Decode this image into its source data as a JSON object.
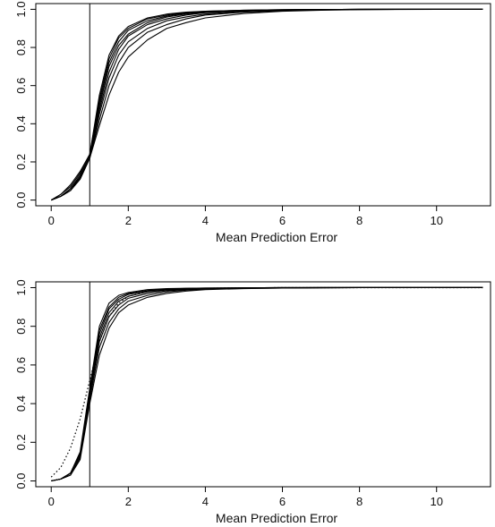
{
  "chart_data": [
    {
      "type": "line",
      "xlabel": "Mean Prediction Error",
      "ylabel": "",
      "xlim": [
        -0.4,
        11.4
      ],
      "ylim": [
        -0.03,
        1.03
      ],
      "xticks": [
        "0",
        "2",
        "4",
        "6",
        "8",
        "10"
      ],
      "yticks": [
        "0.0",
        "0.2",
        "0.4",
        "0.6",
        "0.8",
        "1.0"
      ],
      "vline_x": 1,
      "x": [
        0,
        0.25,
        0.5,
        0.75,
        1,
        1.25,
        1.5,
        1.75,
        2,
        2.5,
        3,
        3.5,
        4,
        5,
        6,
        7,
        8,
        9,
        10,
        11.2
      ],
      "series": [
        {
          "style": "solid",
          "values": [
            0.0,
            0.03,
            0.08,
            0.15,
            0.24,
            0.55,
            0.76,
            0.86,
            0.91,
            0.955,
            0.975,
            0.985,
            0.99,
            0.995,
            0.998,
            0.999,
            1.0,
            1.0,
            1.0,
            1.0
          ]
        },
        {
          "style": "solid",
          "values": [
            0.0,
            0.03,
            0.07,
            0.14,
            0.24,
            0.53,
            0.74,
            0.85,
            0.9,
            0.95,
            0.97,
            0.983,
            0.99,
            0.995,
            0.998,
            0.999,
            1.0,
            1.0,
            1.0,
            1.0
          ]
        },
        {
          "style": "solid",
          "values": [
            0.0,
            0.02,
            0.06,
            0.13,
            0.23,
            0.51,
            0.72,
            0.83,
            0.89,
            0.94,
            0.965,
            0.98,
            0.988,
            0.994,
            0.997,
            0.999,
            1.0,
            1.0,
            1.0,
            1.0
          ]
        },
        {
          "style": "solid",
          "values": [
            0.0,
            0.02,
            0.06,
            0.12,
            0.23,
            0.49,
            0.7,
            0.81,
            0.87,
            0.93,
            0.96,
            0.975,
            0.985,
            0.993,
            0.997,
            0.999,
            1.0,
            1.0,
            1.0,
            1.0
          ]
        },
        {
          "style": "solid",
          "values": [
            0.0,
            0.02,
            0.05,
            0.12,
            0.22,
            0.47,
            0.67,
            0.79,
            0.86,
            0.92,
            0.95,
            0.97,
            0.982,
            0.992,
            0.996,
            0.998,
            1.0,
            1.0,
            1.0,
            1.0
          ]
        },
        {
          "style": "solid",
          "values": [
            0.0,
            0.02,
            0.05,
            0.11,
            0.22,
            0.45,
            0.64,
            0.76,
            0.83,
            0.9,
            0.94,
            0.96,
            0.975,
            0.99,
            0.995,
            0.998,
            0.999,
            1.0,
            1.0,
            1.0
          ]
        },
        {
          "style": "solid",
          "values": [
            0.0,
            0.02,
            0.05,
            0.11,
            0.22,
            0.42,
            0.6,
            0.72,
            0.8,
            0.88,
            0.92,
            0.95,
            0.97,
            0.985,
            0.993,
            0.997,
            0.999,
            1.0,
            1.0,
            1.0
          ]
        },
        {
          "style": "solid",
          "values": [
            0.0,
            0.02,
            0.05,
            0.11,
            0.22,
            0.39,
            0.55,
            0.67,
            0.75,
            0.84,
            0.9,
            0.93,
            0.955,
            0.978,
            0.99,
            0.995,
            0.998,
            0.999,
            1.0,
            1.0
          ]
        }
      ]
    },
    {
      "type": "line",
      "xlabel": "Mean Prediction Error",
      "ylabel": "",
      "xlim": [
        -0.4,
        11.4
      ],
      "ylim": [
        -0.03,
        1.03
      ],
      "xticks": [
        "0",
        "2",
        "4",
        "6",
        "8",
        "10"
      ],
      "yticks": [
        "0.0",
        "0.2",
        "0.4",
        "0.6",
        "0.8",
        "1.0"
      ],
      "vline_x": 1,
      "x": [
        0,
        0.25,
        0.5,
        0.75,
        1,
        1.25,
        1.5,
        1.75,
        2,
        2.5,
        3,
        3.5,
        4,
        5,
        6,
        7,
        8,
        9,
        10,
        11.2
      ],
      "series": [
        {
          "style": "solid",
          "values": [
            0.0,
            0.01,
            0.04,
            0.15,
            0.48,
            0.8,
            0.92,
            0.96,
            0.975,
            0.99,
            0.995,
            0.997,
            0.998,
            0.999,
            1.0,
            1.0,
            1.0,
            1.0,
            1.0,
            1.0
          ]
        },
        {
          "style": "solid",
          "values": [
            0.0,
            0.01,
            0.04,
            0.14,
            0.47,
            0.78,
            0.9,
            0.95,
            0.97,
            0.985,
            0.992,
            0.996,
            0.998,
            0.999,
            1.0,
            1.0,
            1.0,
            1.0,
            1.0,
            1.0
          ]
        },
        {
          "style": "solid",
          "values": [
            0.0,
            0.01,
            0.04,
            0.14,
            0.46,
            0.76,
            0.89,
            0.94,
            0.965,
            0.983,
            0.99,
            0.995,
            0.997,
            0.999,
            1.0,
            1.0,
            1.0,
            1.0,
            1.0,
            1.0
          ]
        },
        {
          "style": "solid",
          "values": [
            0.0,
            0.01,
            0.04,
            0.13,
            0.45,
            0.74,
            0.87,
            0.93,
            0.955,
            0.978,
            0.988,
            0.993,
            0.996,
            0.998,
            0.999,
            1.0,
            1.0,
            1.0,
            1.0,
            1.0
          ]
        },
        {
          "style": "solid",
          "values": [
            0.0,
            0.01,
            0.04,
            0.13,
            0.44,
            0.72,
            0.85,
            0.91,
            0.945,
            0.97,
            0.984,
            0.99,
            0.994,
            0.997,
            0.999,
            1.0,
            1.0,
            1.0,
            1.0,
            1.0
          ]
        },
        {
          "style": "solid",
          "values": [
            0.0,
            0.01,
            0.03,
            0.12,
            0.42,
            0.69,
            0.82,
            0.89,
            0.93,
            0.96,
            0.978,
            0.987,
            0.992,
            0.996,
            0.998,
            0.999,
            1.0,
            1.0,
            1.0,
            1.0
          ]
        },
        {
          "style": "solid",
          "values": [
            0.0,
            0.01,
            0.03,
            0.11,
            0.4,
            0.65,
            0.79,
            0.87,
            0.91,
            0.95,
            0.97,
            0.982,
            0.99,
            0.995,
            0.998,
            0.999,
            1.0,
            1.0,
            1.0,
            1.0
          ]
        },
        {
          "style": "dotted",
          "values": [
            0.02,
            0.07,
            0.17,
            0.32,
            0.52,
            0.72,
            0.85,
            0.92,
            0.955,
            0.98,
            0.99,
            0.995,
            0.997,
            0.999,
            1.0,
            1.0,
            1.0,
            1.0,
            1.0,
            1.0
          ]
        }
      ]
    }
  ]
}
